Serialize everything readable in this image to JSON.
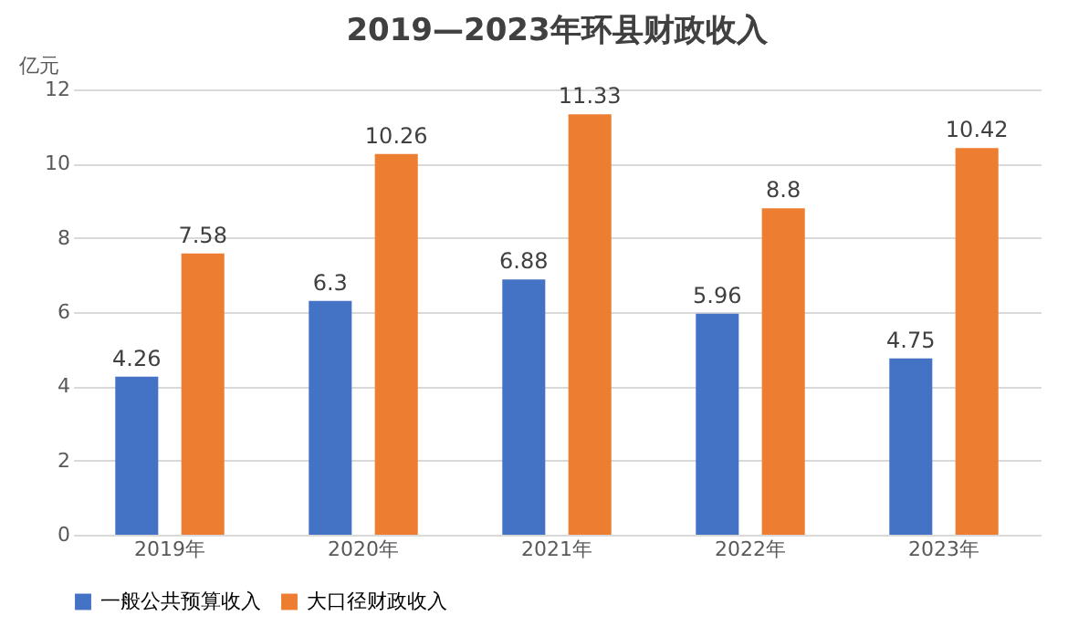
{
  "chart_data": {
    "type": "bar",
    "title": "2019—2023年环县财政收入",
    "ylabel": "亿元",
    "categories": [
      "2019年",
      "2020年",
      "2021年",
      "2022年",
      "2023年"
    ],
    "series": [
      {
        "name": "一般公共预算收入",
        "color": "#4472c4",
        "values": [
          4.26,
          6.3,
          6.88,
          5.96,
          4.75
        ]
      },
      {
        "name": "大口径财政收入",
        "color": "#ed7d31",
        "values": [
          7.58,
          10.26,
          11.33,
          8.8,
          10.42
        ]
      }
    ],
    "ylim": [
      0,
      12
    ],
    "yticks": [
      0,
      2,
      4,
      6,
      8,
      10,
      12
    ],
    "grid": "y",
    "legend": "bottom",
    "data_labels": true
  }
}
